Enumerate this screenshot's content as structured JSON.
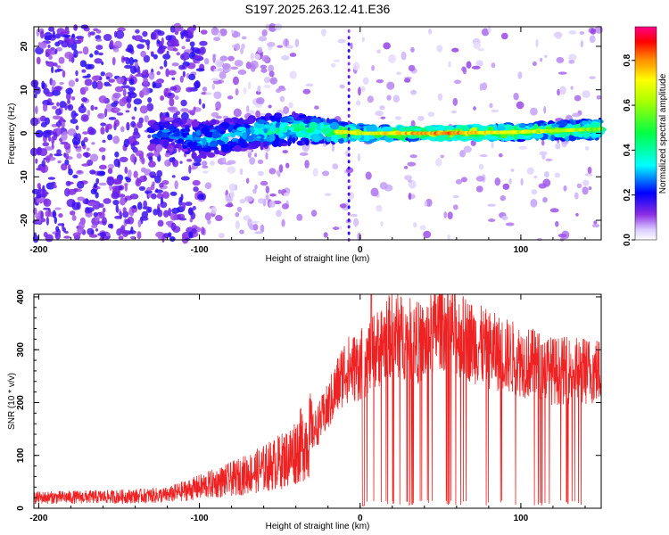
{
  "title": "S197.2025.263.12.41.E36",
  "chart_data": [
    {
      "type": "heatmap",
      "name": "spectrogram",
      "xlabel": "Height of straight line (km)",
      "ylabel": "Frequency (Hz)",
      "xlim": [
        -203,
        150
      ],
      "ylim": [
        -24.5,
        24.5
      ],
      "xticks": [
        -200,
        -100,
        0,
        100
      ],
      "yticks": [
        20,
        10,
        0,
        -10,
        -20
      ],
      "colorbar": {
        "label": "Normalized spectral amplitude",
        "range": [
          0,
          0.95
        ],
        "ticks": [
          0.0,
          0.2,
          0.4,
          0.6,
          0.8
        ]
      },
      "ridge": [
        {
          "x": -120,
          "y": 0.0,
          "w": 3.5,
          "amp": 0.3
        },
        {
          "x": -100,
          "y": -1.5,
          "w": 4.0,
          "amp": 0.35
        },
        {
          "x": -70,
          "y": 0.0,
          "w": 3.5,
          "amp": 0.4
        },
        {
          "x": -45,
          "y": 1.0,
          "w": 3.5,
          "amp": 0.45
        },
        {
          "x": -20,
          "y": 0.5,
          "w": 2.5,
          "amp": 0.55
        },
        {
          "x": -10,
          "y": 0.3,
          "w": 2.0,
          "amp": 0.75
        },
        {
          "x": 0,
          "y": 0.0,
          "w": 1.5,
          "amp": 0.7
        },
        {
          "x": 50,
          "y": 0.0,
          "w": 1.2,
          "amp": 0.85
        },
        {
          "x": 100,
          "y": 0.3,
          "w": 1.5,
          "amp": 0.7
        },
        {
          "x": 150,
          "y": 1.0,
          "w": 2.0,
          "amp": 0.6
        }
      ],
      "vertical_artifact_x": -7
    },
    {
      "type": "line",
      "name": "snr",
      "xlabel": "Height of straight line (km)",
      "ylabel": "SNR (10 * v/v)",
      "xlim": [
        -203,
        150
      ],
      "ylim": [
        0,
        405
      ],
      "xticks": [
        -200,
        -100,
        0,
        100
      ],
      "yticks": [
        0,
        100,
        200,
        300,
        400
      ],
      "series": [
        {
          "name": "SNR",
          "color": "#ee2222",
          "envelope_x": [
            -203,
            -150,
            -120,
            -100,
            -80,
            -60,
            -45,
            -30,
            -20,
            -10,
            0,
            10,
            20,
            30,
            40,
            50,
            60,
            80,
            100,
            120,
            150
          ],
          "envelope_y": [
            20,
            22,
            25,
            40,
            55,
            75,
            95,
            140,
            190,
            260,
            270,
            300,
            330,
            320,
            310,
            350,
            330,
            300,
            280,
            260,
            260
          ],
          "peak_x": 7,
          "peak_y": 405,
          "dip_x": 2,
          "dip_y": 5
        }
      ]
    }
  ]
}
